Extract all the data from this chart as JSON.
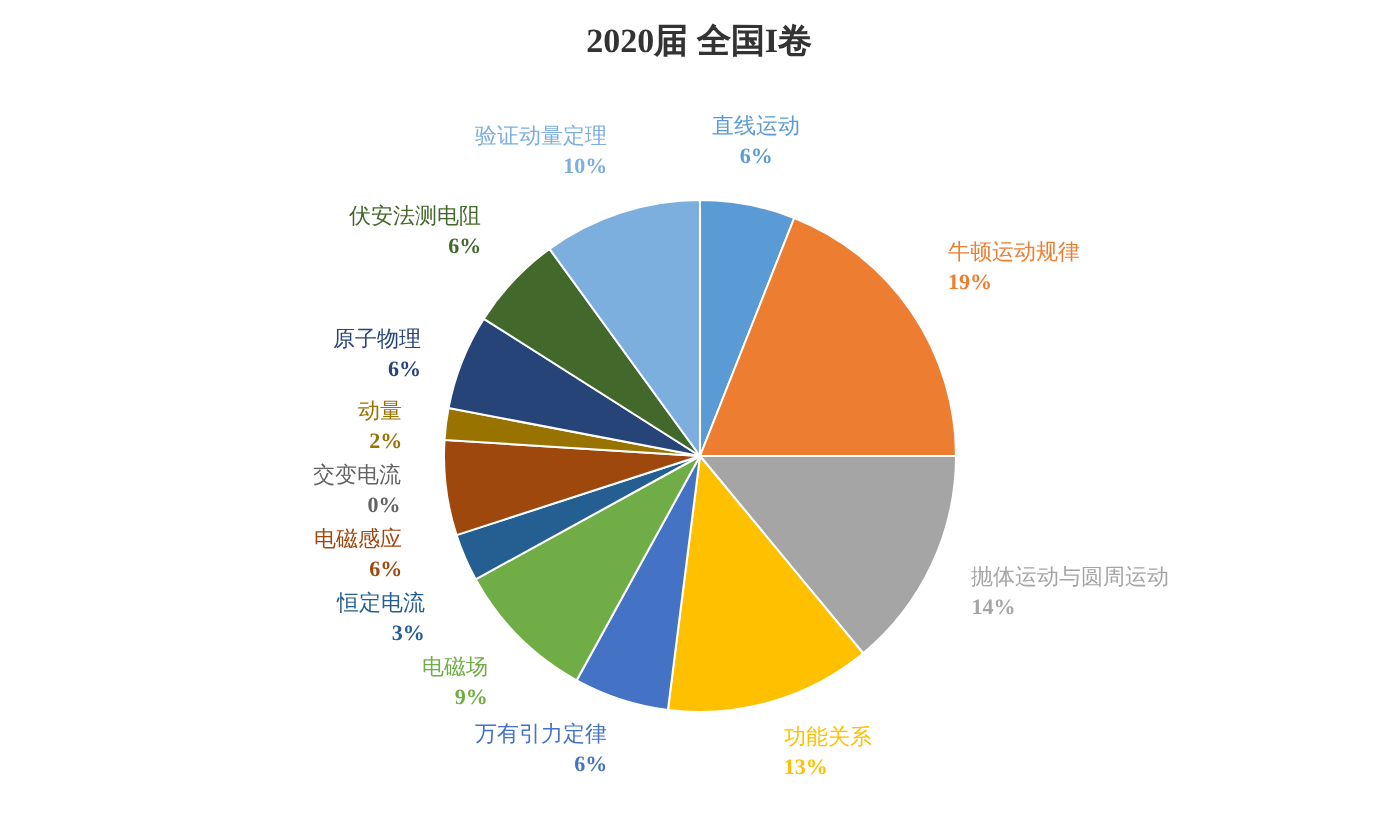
{
  "chart_data": {
    "type": "pie",
    "title": "2020届 全国I卷",
    "categories": [
      "直线运动",
      "牛顿运动规律",
      "抛体运动与圆周运动",
      "功能关系",
      "万有引力定律",
      "电磁场",
      "恒定电流",
      "电磁感应",
      "交变电流",
      "动量",
      "原子物理",
      "伏安法测电阻",
      "验证动量定理"
    ],
    "values": [
      6,
      19,
      14,
      13,
      6,
      9,
      3,
      6,
      0,
      2,
      6,
      6,
      10
    ],
    "colors": [
      "#5b9bd5",
      "#ed7d31",
      "#a5a5a5",
      "#ffc000",
      "#4472c4",
      "#70ad47",
      "#255e91",
      "#9e480e",
      "#636363",
      "#997300",
      "#264478",
      "#43682b",
      "#7cafdd"
    ],
    "value_labels": [
      "6%",
      "19%",
      "14%",
      "13%",
      "6%",
      "9%",
      "3%",
      "6%",
      "0%",
      "2%",
      "6%",
      "6%",
      "10%"
    ]
  }
}
